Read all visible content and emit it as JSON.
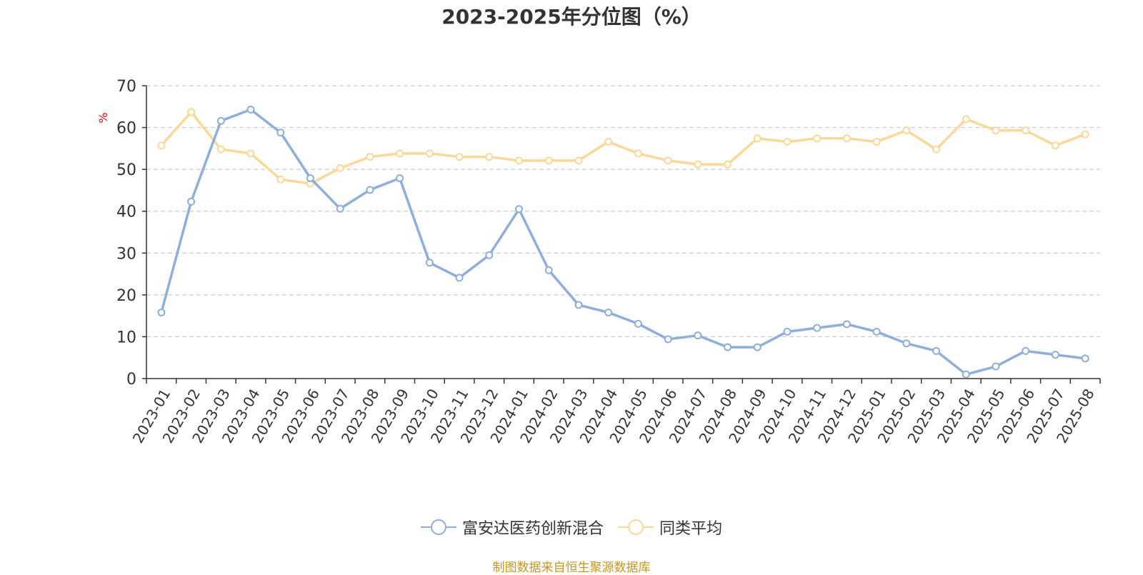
{
  "title": "2023-2025年分位图（%）",
  "source": "制图数据来自恒生聚源数据库",
  "colors": {
    "series1": "#8eaedb",
    "series2": "#fcd898",
    "grid": "#cccccc",
    "axis": "#333333",
    "ylabel": "#ff0000"
  },
  "legend": {
    "items": [
      "富安达医药创新混合",
      "同类平均"
    ]
  },
  "chart_data": {
    "type": "line",
    "title": "2023-2025年分位图（%）",
    "ylabel": "%",
    "xlabel": "",
    "ylim": [
      0,
      70
    ],
    "yticks": [
      0,
      10,
      20,
      30,
      40,
      50,
      60,
      70
    ],
    "grid": true,
    "legend_position": "bottom",
    "categories": [
      "2023-01",
      "2023-02",
      "2023-03",
      "2023-04",
      "2023-05",
      "2023-06",
      "2023-07",
      "2023-08",
      "2023-09",
      "2023-10",
      "2023-11",
      "2023-12",
      "2024-01",
      "2024-02",
      "2024-03",
      "2024-04",
      "2024-05",
      "2024-06",
      "2024-07",
      "2024-08",
      "2024-09",
      "2024-10",
      "2024-11",
      "2024-12",
      "2025-01",
      "2025-02",
      "2025-03",
      "2025-04",
      "2025-05",
      "2025-06",
      "2025-07",
      "2025-08"
    ],
    "series": [
      {
        "name": "富安达医药创新混合",
        "values": [
          15.8,
          42.3,
          61.6,
          64.3,
          58.8,
          47.9,
          40.6,
          45.1,
          47.9,
          27.7,
          24.1,
          29.5,
          40.5,
          25.9,
          17.6,
          15.8,
          13.1,
          9.4,
          10.3,
          7.5,
          7.5,
          11.2,
          12.1,
          13.0,
          11.2,
          8.4,
          6.6,
          1.0,
          2.9,
          6.6,
          5.7,
          4.8
        ]
      },
      {
        "name": "同类平均",
        "values": [
          55.7,
          63.7,
          54.8,
          53.8,
          47.6,
          46.6,
          50.3,
          53.0,
          53.8,
          53.8,
          53.0,
          53.0,
          52.1,
          52.1,
          52.1,
          56.6,
          53.8,
          52.1,
          51.2,
          51.2,
          57.4,
          56.6,
          57.4,
          57.4,
          56.6,
          59.3,
          54.8,
          62.0,
          59.3,
          59.3,
          55.7,
          58.4
        ]
      }
    ]
  }
}
